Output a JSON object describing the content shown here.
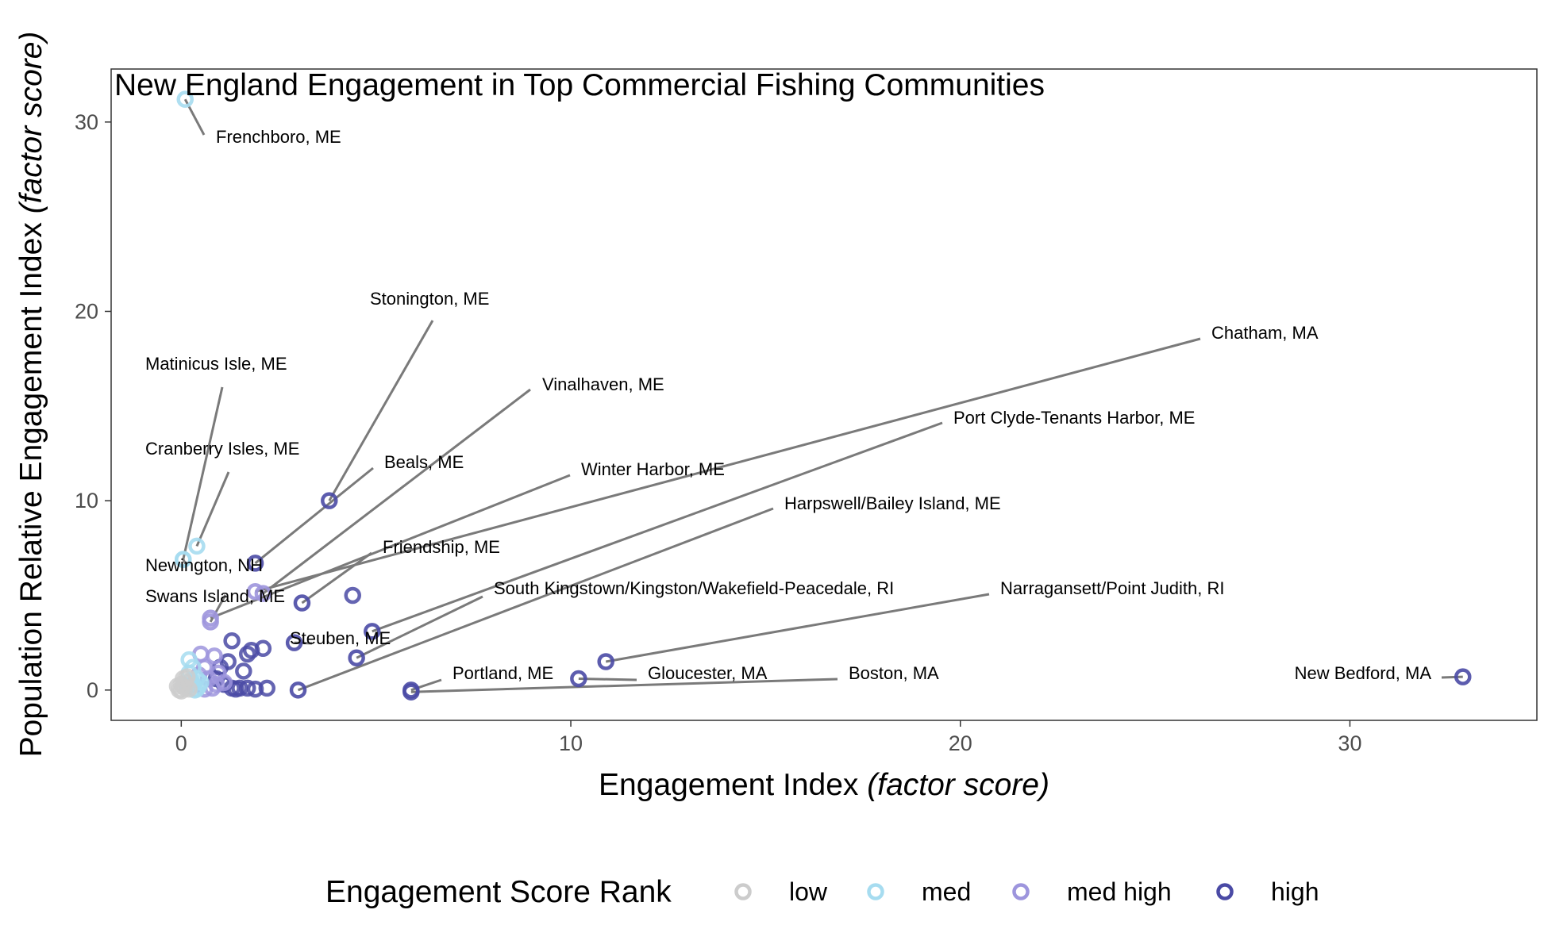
{
  "chart_data": {
    "type": "scatter",
    "title": "New England Engagement in Top Commercial Fishing Communities",
    "xlabel": "Engagement Index",
    "xlabel_italic": "(factor score)",
    "ylabel": "Population Relative Engagement Index",
    "ylabel_italic": "(factor score)",
    "xlim": [
      -1.8,
      34.8
    ],
    "ylim": [
      -1.6,
      32.8
    ],
    "x_ticks": [
      0,
      10,
      20,
      30
    ],
    "y_ticks": [
      0,
      10,
      20,
      30
    ],
    "grid": false,
    "legend": {
      "title": "Engagement Score Rank",
      "position": "bottom",
      "entries": [
        {
          "key": "low",
          "label": "low",
          "color": "#cccccc"
        },
        {
          "key": "med",
          "label": "med",
          "color": "#a6dcf0"
        },
        {
          "key": "med_high",
          "label": "med high",
          "color": "#9d95dd"
        },
        {
          "key": "high",
          "label": "high",
          "color": "#4a4aa5"
        }
      ]
    },
    "labeled_points": [
      {
        "name": "Frenchboro, ME",
        "x": 0.1,
        "y": 31.2,
        "rank": "med"
      },
      {
        "name": "Matinicus Isle, ME",
        "x": 0.05,
        "y": 6.9,
        "rank": "med"
      },
      {
        "name": "Cranberry Isles, ME",
        "x": 0.4,
        "y": 7.6,
        "rank": "med"
      },
      {
        "name": "Stonington, ME",
        "x": 3.8,
        "y": 10.0,
        "rank": "high"
      },
      {
        "name": "Vinalhaven, ME",
        "x": 2.1,
        "y": 5.1,
        "rank": "med_high"
      },
      {
        "name": "Chatham, MA",
        "x": 1.9,
        "y": 5.2,
        "rank": "med_high"
      },
      {
        "name": "Beals, ME",
        "x": 1.9,
        "y": 6.7,
        "rank": "high"
      },
      {
        "name": "Port Clyde-Tenants Harbor, ME",
        "x": 4.9,
        "y": 3.1,
        "rank": "high"
      },
      {
        "name": "Winter Harbor, ME",
        "x": 0.75,
        "y": 3.8,
        "rank": "med_high"
      },
      {
        "name": "Harpswell/Bailey Island, ME",
        "x": 3.0,
        "y": 0.0,
        "rank": "high"
      },
      {
        "name": "Newington, NH",
        "x": 0.05,
        "y": 6.9,
        "rank": "med"
      },
      {
        "name": "Friendship, ME",
        "x": 3.1,
        "y": 4.6,
        "rank": "high"
      },
      {
        "name": "Swans Island, ME",
        "x": 0.75,
        "y": 3.6,
        "rank": "med_high"
      },
      {
        "name": "South Kingstown/Kingston/Wakefield-Peacedale, RI",
        "x": 4.5,
        "y": 1.7,
        "rank": "high"
      },
      {
        "name": "Narragansett/Point Judith, RI",
        "x": 10.9,
        "y": 1.5,
        "rank": "high"
      },
      {
        "name": "Steuben, ME",
        "x": 2.9,
        "y": 2.5,
        "rank": "high"
      },
      {
        "name": "Portland, ME",
        "x": 5.9,
        "y": 0.0,
        "rank": "high"
      },
      {
        "name": "Gloucester, MA",
        "x": 10.2,
        "y": 0.6,
        "rank": "high"
      },
      {
        "name": "Boston, MA",
        "x": 5.9,
        "y": -0.1,
        "rank": "high"
      },
      {
        "name": "New Bedford, MA",
        "x": 32.9,
        "y": 0.7,
        "rank": "high"
      }
    ],
    "points": [
      {
        "x": 4.4,
        "y": 5.0,
        "rank": "high"
      },
      {
        "x": 1.3,
        "y": 2.6,
        "rank": "high"
      },
      {
        "x": 2.1,
        "y": 2.2,
        "rank": "high"
      },
      {
        "x": 1.8,
        "y": 2.1,
        "rank": "high"
      },
      {
        "x": 1.7,
        "y": 1.9,
        "rank": "high"
      },
      {
        "x": 1.6,
        "y": 1.0,
        "rank": "high"
      },
      {
        "x": 1.2,
        "y": 1.5,
        "rank": "high"
      },
      {
        "x": 2.2,
        "y": 0.1,
        "rank": "high"
      },
      {
        "x": 1.9,
        "y": 0.05,
        "rank": "high"
      },
      {
        "x": 1.5,
        "y": 0.1,
        "rank": "high"
      },
      {
        "x": 1.3,
        "y": 0.1,
        "rank": "high"
      },
      {
        "x": 1.1,
        "y": 0.3,
        "rank": "high"
      },
      {
        "x": 0.9,
        "y": 0.6,
        "rank": "high"
      },
      {
        "x": 1.0,
        "y": 1.2,
        "rank": "high"
      },
      {
        "x": 1.4,
        "y": 0.05,
        "rank": "high"
      },
      {
        "x": 1.7,
        "y": 0.1,
        "rank": "high"
      },
      {
        "x": 0.5,
        "y": 1.9,
        "rank": "med_high"
      },
      {
        "x": 0.85,
        "y": 1.8,
        "rank": "med_high"
      },
      {
        "x": 0.6,
        "y": 1.2,
        "rank": "med_high"
      },
      {
        "x": 0.9,
        "y": 0.3,
        "rank": "med_high"
      },
      {
        "x": 0.8,
        "y": 0.1,
        "rank": "med_high"
      },
      {
        "x": 0.7,
        "y": 0.6,
        "rank": "med_high"
      },
      {
        "x": 0.6,
        "y": 0.05,
        "rank": "med_high"
      },
      {
        "x": 1.1,
        "y": 0.4,
        "rank": "med_high"
      },
      {
        "x": 0.95,
        "y": 0.9,
        "rank": "med_high"
      },
      {
        "x": 0.45,
        "y": 0.8,
        "rank": "med_high"
      },
      {
        "x": 0.2,
        "y": 1.6,
        "rank": "med"
      },
      {
        "x": 0.3,
        "y": 1.2,
        "rank": "med"
      },
      {
        "x": 0.4,
        "y": 0.6,
        "rank": "med"
      },
      {
        "x": 0.3,
        "y": 0.3,
        "rank": "med"
      },
      {
        "x": 0.2,
        "y": 0.9,
        "rank": "med"
      },
      {
        "x": 0.45,
        "y": 0.2,
        "rank": "med"
      },
      {
        "x": 0.35,
        "y": 0.0,
        "rank": "med"
      },
      {
        "x": 0.25,
        "y": 0.5,
        "rank": "med"
      },
      {
        "x": 0.5,
        "y": 0.4,
        "rank": "med"
      },
      {
        "x": 0.15,
        "y": 0.2,
        "rank": "med"
      },
      {
        "x": 0.4,
        "y": 0.05,
        "rank": "med"
      },
      {
        "x": 0.0,
        "y": 0.3,
        "rank": "low"
      },
      {
        "x": 0.05,
        "y": 0.6,
        "rank": "low"
      },
      {
        "x": 0.1,
        "y": 0.1,
        "rank": "low"
      },
      {
        "x": -0.05,
        "y": 0.0,
        "rank": "low"
      },
      {
        "x": 0.15,
        "y": 0.7,
        "rank": "low"
      },
      {
        "x": 0.0,
        "y": -0.05,
        "rank": "low"
      },
      {
        "x": 0.1,
        "y": 0.4,
        "rank": "low"
      },
      {
        "x": 0.05,
        "y": 0.2,
        "rank": "low"
      },
      {
        "x": 0.2,
        "y": 0.05,
        "rank": "low"
      },
      {
        "x": -0.1,
        "y": 0.2,
        "rank": "low"
      }
    ]
  }
}
